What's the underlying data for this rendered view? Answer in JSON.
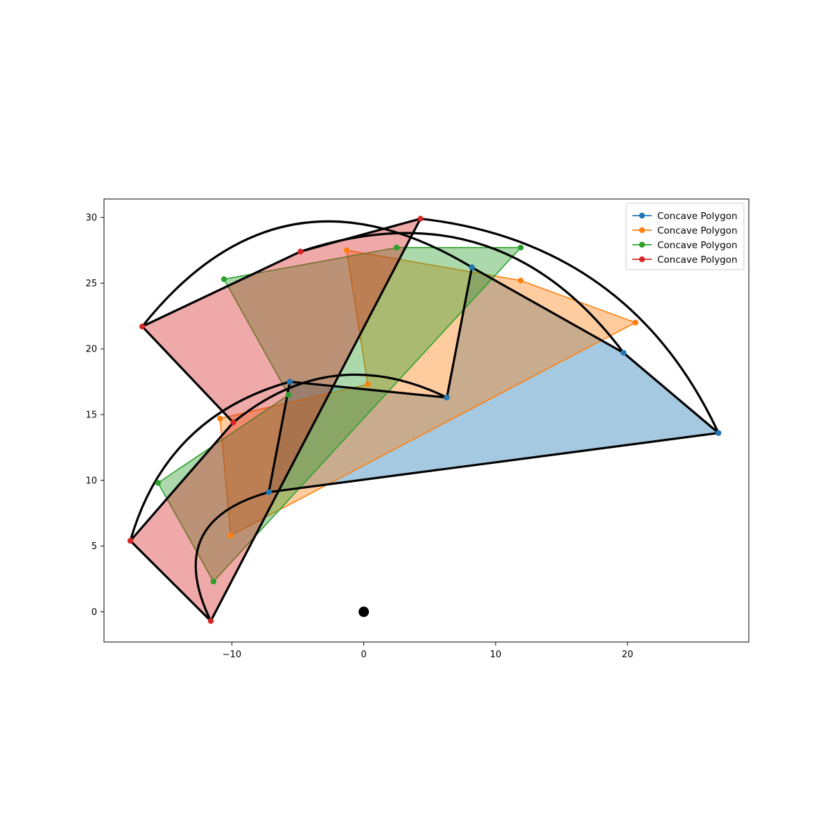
{
  "chart_data": {
    "type": "polygon-overlay",
    "title": "",
    "xlabel": "",
    "ylabel": "",
    "xlim": [
      -19.7,
      29.2
    ],
    "ylim": [
      -2.3,
      31.4
    ],
    "x_ticks": [
      -10,
      0,
      10,
      20
    ],
    "y_ticks": [
      0,
      5,
      10,
      15,
      20,
      25,
      30
    ],
    "x_tick_labels": [
      "−10",
      "0",
      "10",
      "20"
    ],
    "y_tick_labels": [
      "0",
      "5",
      "10",
      "15",
      "20",
      "25",
      "30"
    ],
    "grid": false,
    "legend_position": "top-right",
    "origin_marker": [
      0,
      0
    ],
    "series": [
      {
        "name": "Concave Polygon",
        "color": "#1f77b4",
        "vertices": [
          [
            8.2,
            26.2
          ],
          [
            6.3,
            16.3
          ],
          [
            -5.6,
            17.5
          ],
          [
            -7.2,
            9.1
          ],
          [
            26.9,
            13.6
          ],
          [
            19.7,
            19.7
          ]
        ]
      },
      {
        "name": "Concave Polygon",
        "color": "#ff7f0e",
        "vertices": [
          [
            -1.3,
            27.5
          ],
          [
            0.3,
            17.3
          ],
          [
            -10.9,
            14.7
          ],
          [
            -10.1,
            5.8
          ],
          [
            20.6,
            22.0
          ],
          [
            11.9,
            25.2
          ]
        ]
      },
      {
        "name": "Concave Polygon",
        "color": "#2ca02c",
        "vertices": [
          [
            -10.6,
            25.3
          ],
          [
            -5.7,
            16.5
          ],
          [
            -15.6,
            9.8
          ],
          [
            -11.4,
            2.3
          ],
          [
            11.9,
            27.7
          ],
          [
            2.5,
            27.7
          ]
        ]
      },
      {
        "name": "Concave Polygon",
        "color": "#d62728",
        "vertices": [
          [
            -4.8,
            27.4
          ],
          [
            -16.8,
            21.7
          ],
          [
            -9.9,
            14.4
          ],
          [
            -17.7,
            5.4
          ],
          [
            -11.6,
            -0.7
          ],
          [
            4.3,
            29.9
          ]
        ]
      }
    ],
    "outline": {
      "color": "#000000",
      "paths": [
        [
          [
            8.2,
            26.2
          ],
          [
            6.3,
            16.3
          ],
          [
            -5.6,
            17.5
          ],
          [
            -7.2,
            9.1
          ],
          [
            26.9,
            13.6
          ],
          [
            19.7,
            19.7
          ]
        ],
        [
          [
            -16.8,
            21.7
          ],
          [
            -9.9,
            14.4
          ],
          [
            -17.7,
            5.4
          ],
          [
            -11.6,
            -0.7
          ],
          [
            4.3,
            29.9
          ],
          [
            -4.8,
            27.4
          ]
        ]
      ],
      "arcs": [
        {
          "start": [
            4.3,
            29.9
          ],
          "end": [
            26.9,
            13.6
          ],
          "sagitta": 0.14,
          "dir": 1
        },
        {
          "start": [
            -4.8,
            27.4
          ],
          "end": [
            19.7,
            19.7
          ],
          "sagitta": 0.18,
          "dir": 1
        },
        {
          "start": [
            -16.8,
            21.7
          ],
          "end": [
            8.2,
            26.2
          ],
          "sagitta": 0.22,
          "dir": 1
        },
        {
          "start": [
            -9.9,
            14.4
          ],
          "end": [
            6.3,
            16.3
          ],
          "sagitta": 0.16,
          "dir": 1
        },
        {
          "start": [
            -17.7,
            5.4
          ],
          "end": [
            -5.6,
            17.5
          ],
          "sagitta": 0.14,
          "dir": 1
        },
        {
          "start": [
            -11.6,
            -0.7
          ],
          "end": [
            -7.2,
            9.1
          ],
          "sagitta": 0.3,
          "dir": 1
        }
      ]
    }
  }
}
